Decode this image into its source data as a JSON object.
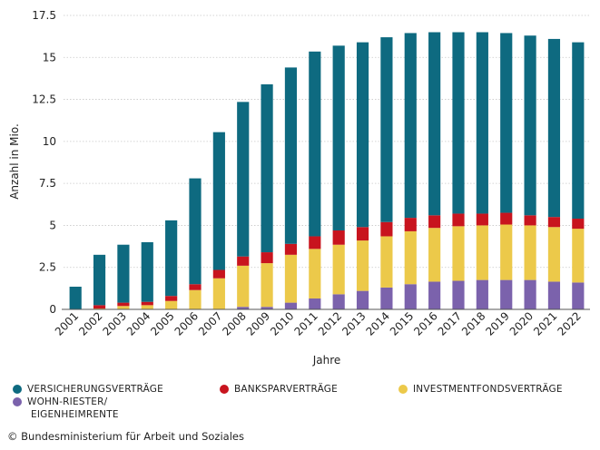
{
  "chart_data": {
    "type": "bar",
    "stacked": true,
    "title": "",
    "xlabel": "Jahre",
    "ylabel": "Anzahl in Mio.",
    "ylim": [
      0,
      17.5
    ],
    "yticks": [
      0,
      2.5,
      5,
      7.5,
      10,
      12.5,
      15,
      17.5
    ],
    "ytick_labels": [
      "0",
      "2.5",
      "5",
      "7.5",
      "10",
      "12.5",
      "15",
      "17.5"
    ],
    "grid": true,
    "categories": [
      "2001",
      "2002",
      "2003",
      "2004",
      "2005",
      "2006",
      "2007",
      "2008",
      "2009",
      "2010",
      "2011",
      "2012",
      "2013",
      "2014",
      "2015",
      "2016",
      "2017",
      "2018",
      "2019",
      "2020",
      "2021",
      "2022"
    ],
    "series": [
      {
        "name": "WOHN-RIESTER/ EIGENHEIMRENTE",
        "color": "#7B62AC",
        "values": [
          0,
          0,
          0,
          0,
          0,
          0,
          0,
          0.15,
          0.15,
          0.4,
          0.65,
          0.9,
          1.1,
          1.3,
          1.5,
          1.65,
          1.7,
          1.75,
          1.75,
          1.75,
          1.65,
          1.6
        ]
      },
      {
        "name": "INVESTMENTFONDSVERTRÄGE",
        "color": "#ECC94A",
        "values": [
          0,
          0.05,
          0.2,
          0.25,
          0.5,
          1.15,
          1.85,
          2.45,
          2.6,
          2.85,
          2.95,
          2.95,
          3.0,
          3.05,
          3.15,
          3.2,
          3.25,
          3.25,
          3.3,
          3.25,
          3.25,
          3.2
        ]
      },
      {
        "name": "BANKSPARVERTRÄGE",
        "color": "#C8141E",
        "values": [
          0,
          0.2,
          0.2,
          0.2,
          0.3,
          0.35,
          0.5,
          0.55,
          0.65,
          0.65,
          0.75,
          0.85,
          0.8,
          0.85,
          0.8,
          0.75,
          0.75,
          0.7,
          0.7,
          0.6,
          0.6,
          0.6
        ]
      },
      {
        "name": "VERSICHERUNGSVERTRÄGE",
        "color": "#0E6A80",
        "values": [
          1.35,
          3.0,
          3.45,
          3.55,
          4.5,
          6.3,
          8.2,
          9.2,
          10.0,
          10.5,
          11.0,
          11.0,
          11.0,
          11.0,
          11.0,
          10.9,
          10.8,
          10.8,
          10.7,
          10.7,
          10.6,
          10.5
        ]
      }
    ],
    "legend_order": [
      "VERSICHERUNGSVERTRÄGE",
      "BANKSPARVERTRÄGE",
      "INVESTMENTFONDSVERTRÄGE",
      "WOHN-RIESTER/ EIGENHEIMRENTE"
    ],
    "legend_position": "bottom"
  },
  "legend": {
    "versicherung": "VERSICHERUNGSVERTRÄGE",
    "bankspar": "BANKSPARVERTRÄGE",
    "investment": "INVESTMENTFONDSVERTRÄGE",
    "wohn_line1": "WOHN-RIESTER/",
    "wohn_line2": "EIGENHEIMRENTE"
  },
  "colors": {
    "versicherung": "#0E6A80",
    "bankspar": "#C8141E",
    "investment": "#ECC94A",
    "wohn": "#7B62AC"
  },
  "source": "© Bundesministerium für Arbeit und Soziales"
}
